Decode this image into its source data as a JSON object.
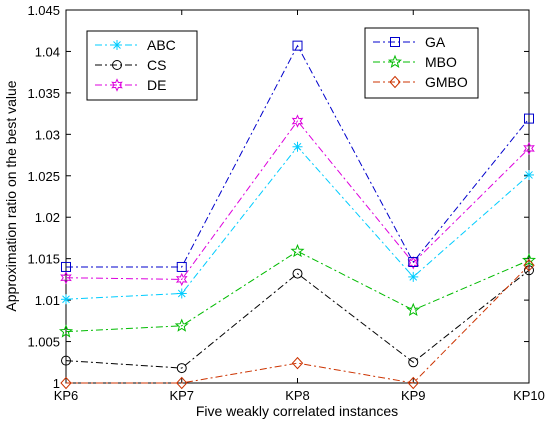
{
  "chart_data": {
    "type": "line",
    "title": "",
    "xlabel": "Five weakly correlated instances",
    "ylabel": "Approximation ratio on the best value",
    "categories": [
      "KP6",
      "KP7",
      "KP8",
      "KP9",
      "KP10"
    ],
    "ylim": [
      1,
      1.045
    ],
    "yticks": [
      "1",
      "1.005",
      "1.01",
      "1.015",
      "1.02",
      "1.025",
      "1.03",
      "1.035",
      "1.04",
      "1.045"
    ],
    "grid": false,
    "legends": [
      {
        "placement": "top-left",
        "entries": [
          "ABC",
          "CS",
          "DE"
        ]
      },
      {
        "placement": "top-right",
        "entries": [
          "GA",
          "MBO",
          "GMBO"
        ]
      }
    ],
    "series": [
      {
        "name": "ABC",
        "color": "#00ccff",
        "marker": "asterisk",
        "values": [
          1.0101,
          1.0108,
          1.0285,
          1.0128,
          1.0251
        ]
      },
      {
        "name": "CS",
        "color": "#000000",
        "marker": "circle",
        "values": [
          1.0027,
          1.0018,
          1.0132,
          1.0025,
          1.0136
        ]
      },
      {
        "name": "DE",
        "color": "#dd00dd",
        "marker": "star6",
        "values": [
          1.0127,
          1.0125,
          1.0316,
          1.0145,
          1.0283
        ]
      },
      {
        "name": "GA",
        "color": "#0000cc",
        "marker": "square",
        "values": [
          1.014,
          1.014,
          1.0407,
          1.0146,
          1.0319
        ]
      },
      {
        "name": "MBO",
        "color": "#00bb00",
        "marker": "star5",
        "values": [
          1.0062,
          1.0069,
          1.0159,
          1.0088,
          1.0148
        ]
      },
      {
        "name": "GMBO",
        "color": "#cc3300",
        "marker": "diamond",
        "values": [
          1.0,
          1.0,
          1.0024,
          1.0,
          1.0142
        ]
      }
    ]
  }
}
